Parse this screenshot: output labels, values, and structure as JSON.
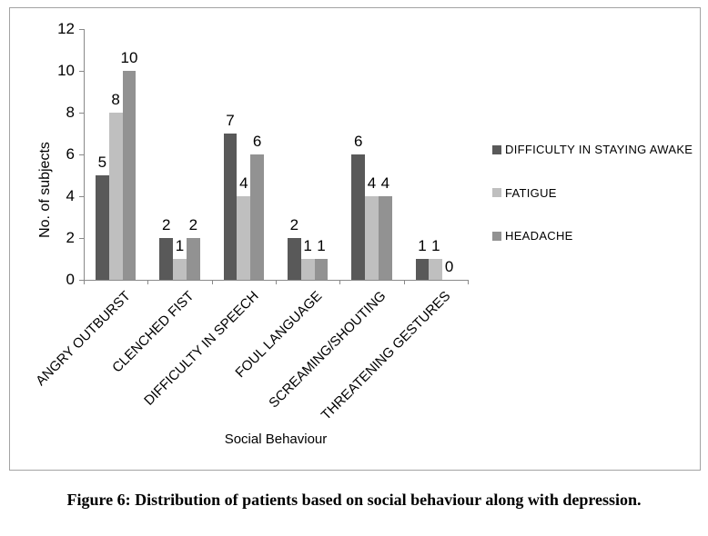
{
  "figure": {
    "caption": "Figure 6: Distribution of patients based on social behaviour along with depression."
  },
  "chart_data": {
    "type": "bar",
    "title": "",
    "categories": [
      "ANGRY OUTBURST",
      "CLENCHED FIST",
      "DIFFICULTY IN SPEECH",
      "FOUL LANGUAGE",
      "SCREAMING/SHOUTING",
      "THREATENING GESTURES"
    ],
    "series": [
      {
        "name": "DIFFICULTY IN STAYING AWAKE",
        "color": "#595959",
        "values": [
          5,
          2,
          7,
          2,
          6,
          1
        ]
      },
      {
        "name": "FATIGUE",
        "color": "#bfbfbf",
        "values": [
          8,
          1,
          4,
          1,
          4,
          1
        ]
      },
      {
        "name": "HEADACHE",
        "color": "#929292",
        "values": [
          10,
          2,
          6,
          1,
          4,
          0
        ]
      }
    ],
    "xlabel": "Social Behaviour",
    "ylabel": "No. of subjects",
    "ylim": [
      0,
      12
    ],
    "yticks": [
      0,
      2,
      4,
      6,
      8,
      10,
      12
    ],
    "grid": false,
    "legend_position": "right",
    "data_labels": true,
    "axis_color": "#898989",
    "frame_color": "#a3a3a3"
  }
}
